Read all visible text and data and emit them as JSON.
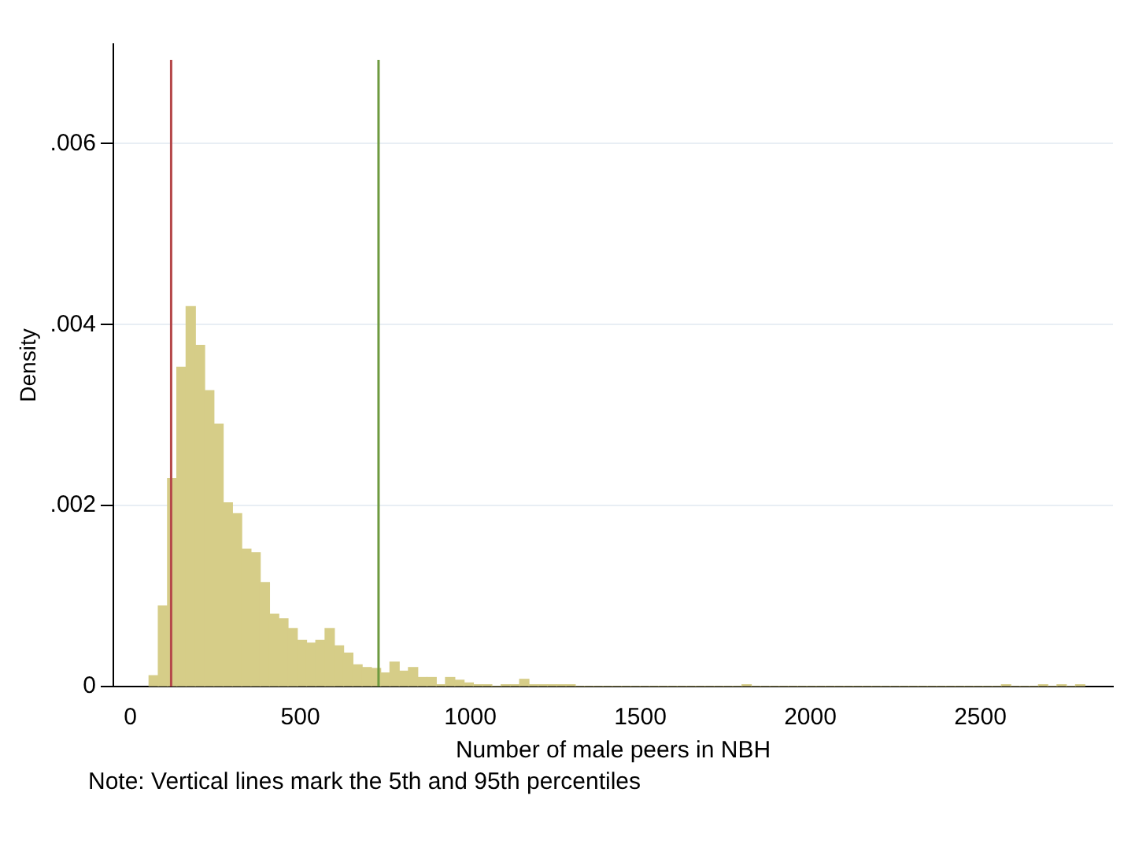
{
  "chart_data": {
    "type": "histogram",
    "xlabel": "Number of male peers in NBH",
    "ylabel": "Density",
    "color": "#d6cd88",
    "bins": [
      55,
      82.25,
      109.5,
      136.75,
      164,
      191.25,
      218.5,
      245.75,
      273,
      300.25,
      327.5,
      354.75,
      382,
      409.25,
      436.5,
      463.75,
      491,
      518.25,
      545.5,
      572.75,
      600,
      627.25,
      654.5,
      681.75,
      709,
      736.25,
      763.5,
      790.75,
      818,
      845.25,
      872.5,
      899.75,
      927,
      954.25,
      981.5,
      1008.75,
      1036,
      1063.25,
      1090.5,
      1117.75,
      1145,
      1172.25,
      1199.5,
      1226.75,
      1254,
      1281.25,
      1308.5,
      1335.75,
      1363,
      1390.25,
      1417.5,
      1444.75,
      1472,
      1499.25,
      1526.5,
      1553.75,
      1581,
      1608.25,
      1635.5,
      1662.75,
      1690,
      1717.25,
      1744.5,
      1771.75,
      1799,
      1826.25,
      1853.5,
      1880.75,
      1908,
      1935.25,
      1962.5,
      1989.75,
      2017,
      2044.25,
      2071.5,
      2098.75,
      2126,
      2153.25,
      2180.5,
      2207.75,
      2235,
      2262.25,
      2289.5,
      2316.75,
      2344,
      2371.25,
      2398.5,
      2425.75,
      2453,
      2480.25,
      2507.5,
      2534.75,
      2562,
      2589.25,
      2616.5,
      2643.75,
      2671,
      2698.25,
      2725.5,
      2752.75,
      2780,
      2807.25
    ],
    "values": [
      0.00012,
      0.00089,
      0.0023,
      0.00353,
      0.0042,
      0.00377,
      0.00327,
      0.0029,
      0.00203,
      0.00191,
      0.00152,
      0.00148,
      0.00115,
      0.0008,
      0.00075,
      0.00064,
      0.00051,
      0.00048,
      0.00051,
      0.00064,
      0.00045,
      0.00037,
      0.00024,
      0.00021,
      0.0002,
      0.00015,
      0.00027,
      0.00017,
      0.00021,
      0.0001,
      0.0001,
      2e-05,
      0.0001,
      7e-05,
      4e-05,
      2e-05,
      2e-05,
      0,
      2e-05,
      2e-05,
      8e-05,
      2e-05,
      2e-05,
      2e-05,
      2e-05,
      2e-05,
      0,
      0,
      0,
      0,
      0,
      0,
      0,
      0,
      0,
      0,
      0,
      0,
      0,
      0,
      0,
      0,
      0,
      0,
      2e-05,
      0,
      0,
      0,
      0,
      0,
      0,
      0,
      0,
      0,
      0,
      0,
      0,
      0,
      0,
      0,
      0,
      0,
      0,
      0,
      0,
      0,
      0,
      0,
      0,
      0,
      0,
      0,
      2e-05,
      0,
      0,
      0,
      2e-05,
      0,
      2e-05,
      0,
      2e-05
    ],
    "xlim": [
      -50,
      2890
    ],
    "xticks": [
      0,
      500,
      1000,
      1500,
      2000,
      2500
    ],
    "ylim": [
      0,
      0.0071
    ],
    "yticks": [
      0,
      {
        "value": 0.002,
        "label": ".002"
      },
      {
        "value": 0.004,
        "label": ".004"
      },
      {
        "value": 0.006,
        "label": ".006"
      }
    ],
    "grid": "y",
    "ref_lines": [
      {
        "axis": "x",
        "value": 120,
        "label": null,
        "color": "#b5484a"
      },
      {
        "axis": "x",
        "value": 730,
        "label": null,
        "color": "#6e9a40"
      }
    ],
    "annotations": [
      "Note: Vertical lines mark the 5th and 95th percentiles"
    ]
  }
}
